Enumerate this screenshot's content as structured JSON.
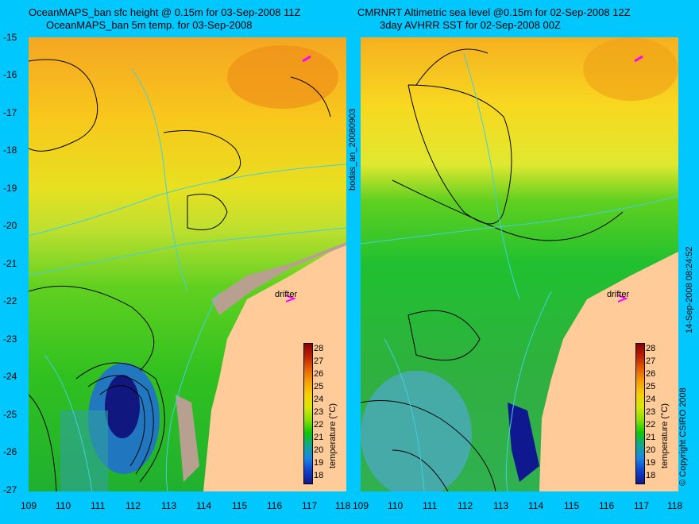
{
  "titles": {
    "left_line1": "OceanMAPS_ban sfc height @ 0.15m for 03-Sep-2008 11Z",
    "left_line2": "OceanMAPS_ban 5m temp. for 03-Sep-2008",
    "right_line1": "CMRNRT Altimetric sea level  @0.15m  for 02-Sep-2008 12Z",
    "right_line2": "3day AVHRR SST for 02-Sep-2008 00Z"
  },
  "y_ticks": [
    "-15",
    "-16",
    "-17",
    "-18",
    "-19",
    "-20",
    "-21",
    "-22",
    "-23",
    "-24",
    "-25",
    "-26",
    "-27"
  ],
  "x_ticks": [
    "109",
    "110",
    "111",
    "112",
    "113",
    "114",
    "115",
    "116",
    "117",
    "118"
  ],
  "colorbar": {
    "ticks": [
      "28",
      "27",
      "26",
      "25",
      "24",
      "23",
      "22",
      "21",
      "20",
      "19",
      "18"
    ],
    "label": "temperature (°C)",
    "colors": [
      "#8b0000",
      "#c02000",
      "#e86000",
      "#f8a000",
      "#f8d000",
      "#d8e800",
      "#88e000",
      "#10c800",
      "#10a890",
      "#1888e8",
      "#1040d0",
      "#101890"
    ]
  },
  "drifter": {
    "label": "drifter",
    "marker": ">"
  },
  "side_labels": {
    "left": "bodas_an_20080903",
    "right": "14-Sep-2008 08:24:52",
    "copyright": "© Copyright CSIRO 2008"
  }
}
